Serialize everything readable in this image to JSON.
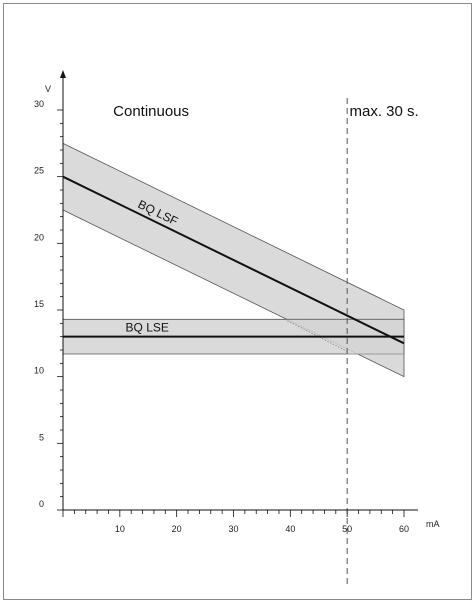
{
  "chart_data": {
    "type": "line",
    "xlabel": "mA",
    "ylabel": "V",
    "xlim": [
      0,
      60
    ],
    "ylim": [
      0,
      30
    ],
    "x_ticks": [
      10,
      20,
      30,
      40,
      50,
      60
    ],
    "y_ticks": [
      0,
      5,
      10,
      15,
      20,
      25,
      30
    ],
    "regions": [
      {
        "label": "Continuous",
        "x_range": [
          0,
          50
        ]
      },
      {
        "label": "max. 30 s.",
        "x_range": [
          50,
          60
        ]
      }
    ],
    "boundary_x": 50,
    "series": [
      {
        "name": "BQ LSF",
        "x": [
          0,
          60
        ],
        "nominal": [
          25,
          12.5
        ],
        "upper": [
          27.5,
          15
        ],
        "lower": [
          22.5,
          10
        ]
      },
      {
        "name": "BQ LSE",
        "x": [
          0,
          60
        ],
        "nominal": [
          13,
          13
        ],
        "upper": [
          14.3,
          14.3
        ],
        "lower": [
          11.7,
          11.7
        ]
      }
    ],
    "colors": {
      "band": "#d4d4d4",
      "line": "#111111",
      "guide": "#9a9a9a"
    }
  }
}
